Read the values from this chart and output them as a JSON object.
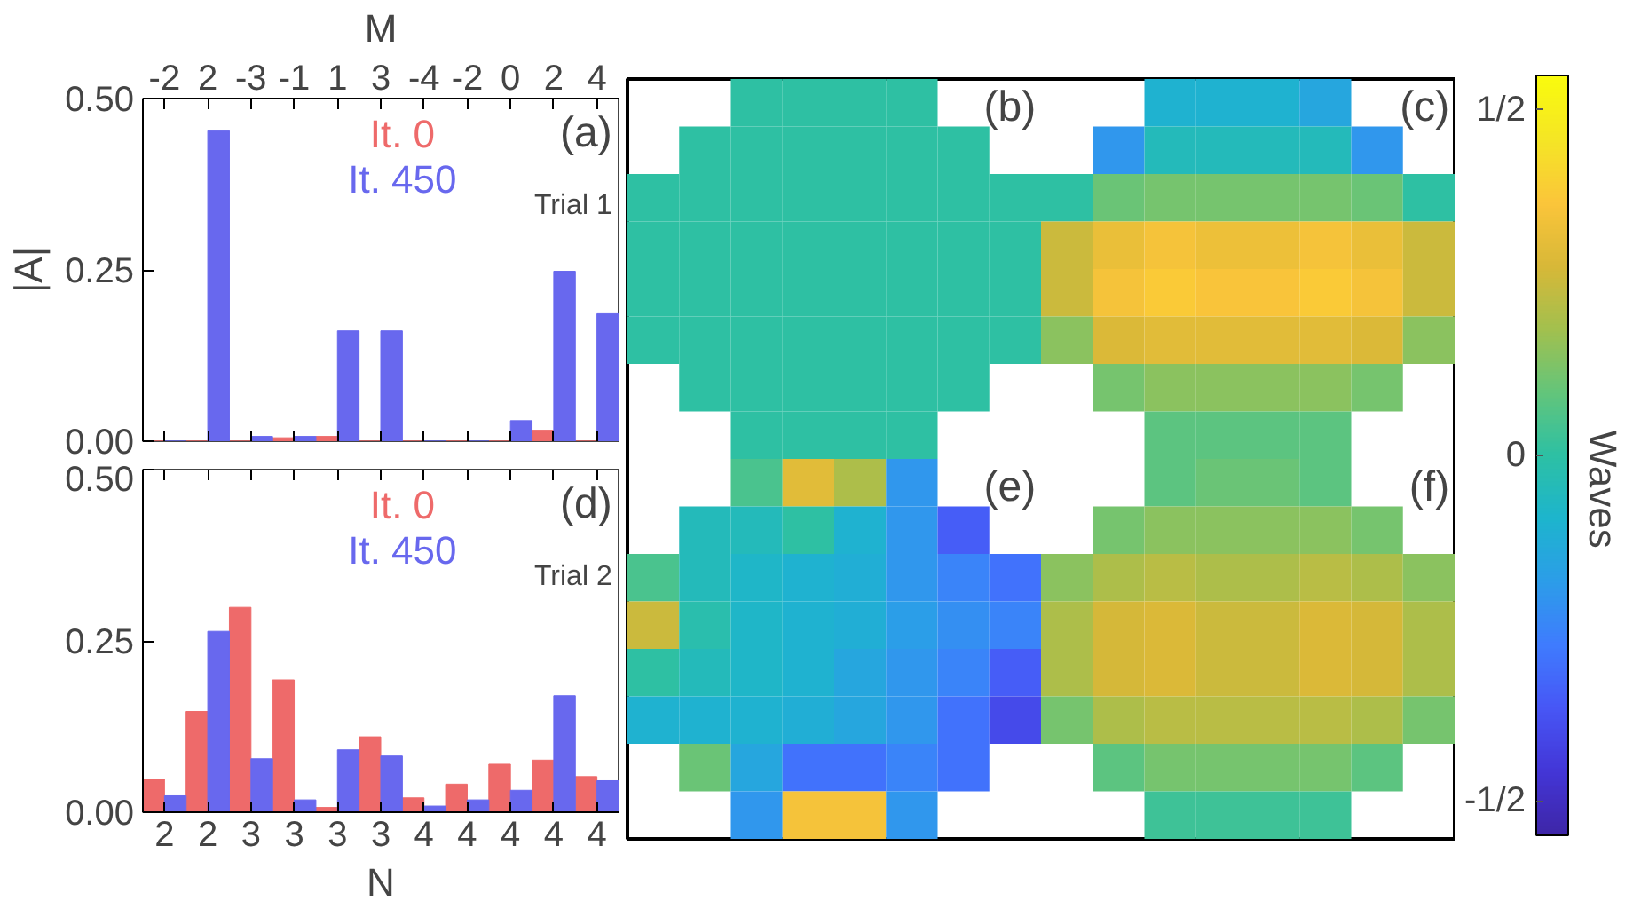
{
  "chart_data": [
    {
      "type": "bar",
      "xlabel": "M",
      "ylabel": "|A|",
      "annotations": [
        "(a)",
        "Trial 1"
      ],
      "categories": [
        "-2",
        "2",
        "-3",
        "-1",
        "1",
        "3",
        "-4",
        "-2",
        "0",
        "2",
        "4"
      ],
      "series": [
        {
          "name": "It. 0",
          "color": "#ee6a6a",
          "values": [
            0,
            0,
            0,
            0.005,
            0.007,
            0,
            0,
            0,
            0,
            0.016,
            0
          ]
        },
        {
          "name": "It. 450",
          "color": "#6868ee",
          "values": [
            0,
            0.453,
            0.007,
            0.007,
            0.161,
            0.161,
            0,
            0,
            0.03,
            0.248,
            0.186
          ]
        }
      ],
      "ylim": [
        0,
        0.5
      ],
      "yticks": [
        {
          "value": 0,
          "label": "0.00"
        },
        {
          "value": 0.25,
          "label": "0.25"
        },
        {
          "value": 0.5,
          "label": "0.50"
        }
      ],
      "legend": "top"
    },
    {
      "type": "heatmap",
      "annotations": [
        "(b)",
        "(c)",
        "(e)",
        "(f)"
      ],
      "clabel": "Waves",
      "categories": [
        null,
        null,
        null,
        null,
        null,
        null,
        null,
        null,
        null,
        null,
        null,
        null,
        null,
        null,
        null,
        null
      ],
      "y_categories": [
        null,
        null,
        null,
        null,
        null,
        null,
        null,
        null,
        null,
        null,
        null,
        null,
        null,
        null,
        null,
        null
      ],
      "cells": [
        [
          null,
          null,
          0,
          0,
          0,
          0,
          null,
          null,
          null,
          null,
          -0.1,
          -0.1,
          -0.1,
          -0.15,
          null,
          null
        ],
        [
          null,
          0,
          0,
          0,
          0,
          0,
          0,
          null,
          null,
          -0.2,
          -0.05,
          -0.05,
          -0.05,
          -0.05,
          -0.2,
          null
        ],
        [
          0,
          0,
          0,
          0,
          0,
          0,
          0,
          0,
          0.0,
          0.1,
          0.12,
          0.12,
          0.12,
          0.12,
          0.1,
          0.0
        ],
        [
          0,
          0,
          0,
          0,
          0,
          0,
          0,
          0,
          0.25,
          0.32,
          0.35,
          0.33,
          0.33,
          0.35,
          0.32,
          0.25
        ],
        [
          0,
          0,
          0,
          0,
          0,
          0,
          0,
          0,
          0.25,
          0.35,
          0.38,
          0.36,
          0.36,
          0.38,
          0.35,
          0.25
        ],
        [
          0,
          0,
          0,
          0,
          0,
          0,
          0,
          0,
          0.15,
          0.28,
          0.3,
          0.3,
          0.3,
          0.3,
          0.28,
          0.15
        ],
        [
          null,
          0,
          0,
          0,
          0,
          0,
          0,
          null,
          null,
          0.12,
          0.15,
          0.15,
          0.15,
          0.15,
          0.12,
          null
        ],
        [
          null,
          null,
          0,
          0,
          0,
          0,
          null,
          null,
          null,
          null,
          0.08,
          0.08,
          0.08,
          0.08,
          null,
          null
        ],
        [
          null,
          null,
          0.05,
          0.3,
          0.2,
          -0.2,
          null,
          null,
          null,
          null,
          0.08,
          0.1,
          0.1,
          0.08,
          null,
          null
        ],
        [
          null,
          -0.05,
          -0.05,
          0.0,
          -0.1,
          -0.2,
          -0.35,
          null,
          null,
          0.12,
          0.15,
          0.15,
          0.15,
          0.15,
          0.12,
          null
        ],
        [
          0.05,
          -0.05,
          -0.08,
          -0.1,
          -0.12,
          -0.2,
          -0.25,
          -0.3,
          0.15,
          0.2,
          0.22,
          0.2,
          0.2,
          0.22,
          0.2,
          0.15
        ],
        [
          0.25,
          -0.02,
          -0.08,
          -0.1,
          -0.12,
          -0.18,
          -0.22,
          -0.25,
          0.2,
          0.27,
          0.28,
          0.25,
          0.25,
          0.28,
          0.27,
          0.2
        ],
        [
          0.0,
          -0.05,
          -0.08,
          -0.1,
          -0.15,
          -0.2,
          -0.25,
          -0.35,
          0.2,
          0.27,
          0.28,
          0.25,
          0.25,
          0.28,
          0.27,
          0.2
        ],
        [
          -0.1,
          -0.1,
          -0.1,
          -0.12,
          -0.15,
          -0.2,
          -0.3,
          -0.4,
          0.12,
          0.2,
          0.22,
          0.22,
          0.22,
          0.22,
          0.2,
          0.12
        ],
        [
          null,
          0.1,
          -0.15,
          -0.3,
          -0.3,
          -0.25,
          -0.3,
          null,
          null,
          0.08,
          0.12,
          0.12,
          0.12,
          0.12,
          0.08,
          null
        ],
        [
          null,
          null,
          -0.2,
          0.35,
          0.35,
          -0.2,
          null,
          null,
          null,
          null,
          0.03,
          0.03,
          0.03,
          0.03,
          null,
          null
        ]
      ],
      "clim": [
        -0.55,
        0.55
      ],
      "cticks": [
        {
          "value": -0.5,
          "label": "-1/2"
        },
        0,
        {
          "value": 0.5,
          "label": "1/2"
        }
      ],
      "tick_labels": false
    },
    {
      "type": "bar",
      "xlabel": "N",
      "annotations": [
        "(d)",
        "Trial 2"
      ],
      "categories": [
        "2",
        "2",
        "3",
        "3",
        "3",
        "3",
        "4",
        "4",
        "4",
        "4",
        "4"
      ],
      "series": [
        {
          "name": "It. 0",
          "color": "#ee6a6a",
          "values": [
            0.048,
            0.147,
            0.299,
            0.193,
            0.007,
            0.11,
            0.021,
            0.041,
            0.07,
            0.076,
            0.052
          ]
        },
        {
          "name": "It. 450",
          "color": "#6868ee",
          "values": [
            0.024,
            0.264,
            0.078,
            0.018,
            0.091,
            0.082,
            0.009,
            0.018,
            0.032,
            0.17,
            0.046
          ]
        }
      ],
      "ylim": [
        0,
        0.5
      ],
      "yticks": [
        {
          "value": 0,
          "label": "0.00"
        },
        {
          "value": 0.25,
          "label": "0.25"
        },
        {
          "value": 0.5,
          "label": "0.50"
        }
      ],
      "legend": "top"
    }
  ]
}
